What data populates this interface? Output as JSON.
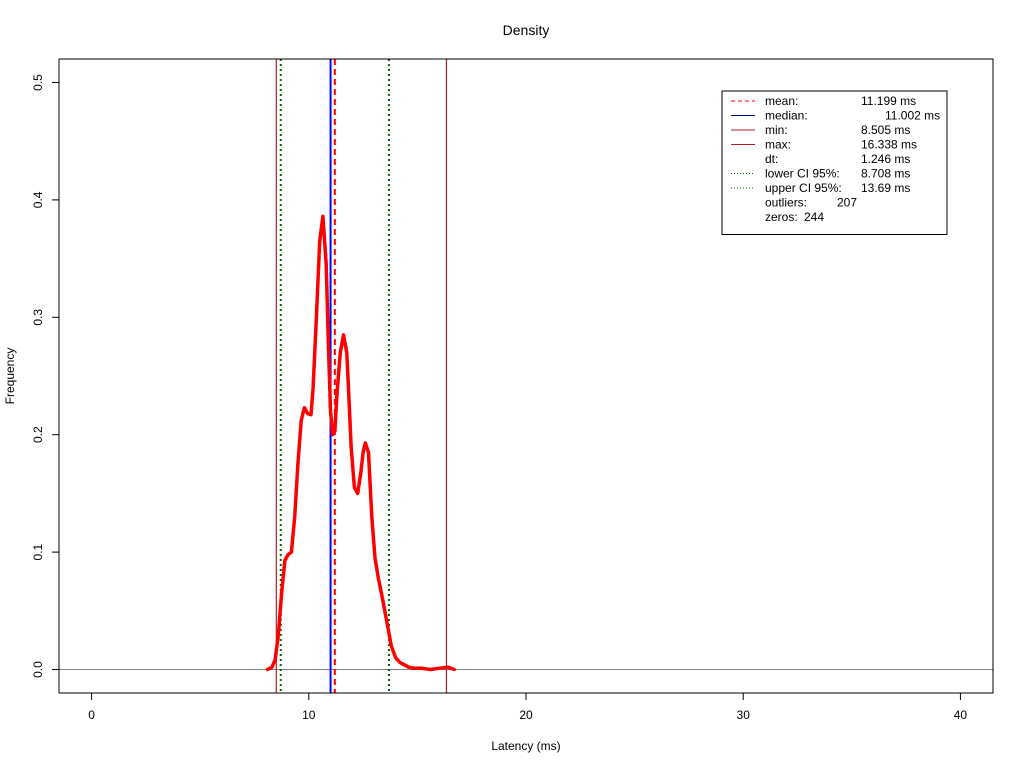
{
  "chart_data": {
    "type": "line",
    "title": "Density",
    "xlabel": "Latency (ms)",
    "ylabel": "Frequency",
    "xlim": [
      -1.5,
      41.5
    ],
    "ylim": [
      -0.02,
      0.52
    ],
    "xticks": [
      0,
      10,
      20,
      30,
      40
    ],
    "yticks": [
      0.0,
      0.1,
      0.2,
      0.3,
      0.4,
      0.5
    ],
    "xtick_labels": [
      "0",
      "10",
      "20",
      "30",
      "40"
    ],
    "ytick_labels": [
      "0.0",
      "0.1",
      "0.2",
      "0.3",
      "0.4",
      "0.5"
    ],
    "grid": false,
    "legend_position": "top-right",
    "series": [
      {
        "color": "#ff0000",
        "x": [
          8.1,
          8.3,
          8.45,
          8.6,
          8.75,
          8.9,
          9.05,
          9.2,
          9.35,
          9.5,
          9.65,
          9.8,
          9.95,
          10.1,
          10.2,
          10.35,
          10.5,
          10.65,
          10.8,
          10.9,
          11.0,
          11.1,
          11.2,
          11.3,
          11.45,
          11.6,
          11.75,
          11.85,
          11.95,
          12.1,
          12.25,
          12.4,
          12.5,
          12.6,
          12.75,
          12.9,
          13.05,
          13.2,
          13.4,
          13.6,
          13.8,
          14.0,
          14.2,
          14.4,
          14.6,
          14.9,
          15.2,
          15.6,
          16.0,
          16.4,
          16.7
        ],
        "y": [
          0.0,
          0.002,
          0.008,
          0.03,
          0.065,
          0.093,
          0.098,
          0.1,
          0.13,
          0.175,
          0.212,
          0.223,
          0.218,
          0.217,
          0.24,
          0.3,
          0.365,
          0.386,
          0.345,
          0.28,
          0.22,
          0.2,
          0.203,
          0.235,
          0.27,
          0.285,
          0.27,
          0.23,
          0.19,
          0.155,
          0.15,
          0.168,
          0.185,
          0.193,
          0.185,
          0.13,
          0.095,
          0.078,
          0.06,
          0.04,
          0.02,
          0.01,
          0.006,
          0.004,
          0.002,
          0.001,
          0.001,
          0.0,
          0.001,
          0.002,
          0.0
        ]
      }
    ],
    "vlines": [
      {
        "name": "min",
        "x": 8.505,
        "color": "#b22222",
        "style": "solid",
        "width": 1.2
      },
      {
        "name": "lower-ci",
        "x": 8.708,
        "color": "#006400",
        "style": "dotted",
        "width": 2
      },
      {
        "name": "median",
        "x": 11.002,
        "color": "#0000ff",
        "style": "solid",
        "width": 2
      },
      {
        "name": "mean",
        "x": 11.199,
        "color": "#ff0000",
        "style": "dashed",
        "width": 2
      },
      {
        "name": "upper-ci",
        "x": 13.69,
        "color": "#006400",
        "style": "dotted",
        "width": 2
      },
      {
        "name": "max",
        "x": 16.338,
        "color": "#b22222",
        "style": "solid",
        "width": 1.2
      }
    ],
    "hline": {
      "y": 0.0,
      "color": "#808080"
    },
    "legend": [
      {
        "label": "mean:",
        "value": "11.199 ms",
        "line_color": "#ff0000",
        "line_style": "dashed"
      },
      {
        "label": "median:",
        "value": "11.002 ms",
        "line_color": "#00008b",
        "line_style": "solid"
      },
      {
        "label": "min:",
        "value": "8.505 ms",
        "line_color": "#b22222",
        "line_style": "solid"
      },
      {
        "label": "max:",
        "value": "16.338 ms",
        "line_color": "#b22222",
        "line_style": "solid"
      },
      {
        "label": "dt:",
        "value": "1.246 ms",
        "line_color": null,
        "line_style": null
      },
      {
        "label": "lower CI 95%:",
        "value": "8.708 ms",
        "line_color": "#006400",
        "line_style": "dotted"
      },
      {
        "label": "upper CI 95%:",
        "value": "13.69 ms",
        "line_color": "#006400",
        "line_style": "dotted"
      },
      {
        "label": "outliers:",
        "value": "207",
        "line_color": null,
        "line_style": null
      },
      {
        "label": "zeros:",
        "value": "244",
        "line_color": null,
        "line_style": null
      }
    ]
  }
}
